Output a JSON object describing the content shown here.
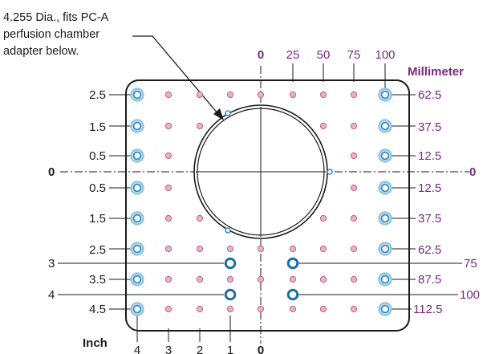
{
  "annotation": {
    "lines": [
      "4.255 Dia., fits PC-A",
      "perfusion chamber",
      "adapter below."
    ]
  },
  "units": {
    "inch": "Inch",
    "millimeter": "Millimeter"
  },
  "left_row_labels": [
    "2.5",
    "1.5",
    "0.5",
    "0",
    "0.5",
    "1.5",
    "2.5",
    "3",
    "3.5",
    "4",
    "4.5"
  ],
  "right_row_labels": [
    "62.5",
    "37.5",
    "12.5",
    "0",
    "12.5",
    "37.5",
    "62.5",
    "75",
    "87.5",
    "100",
    "112.5"
  ],
  "top_col_labels": [
    "0",
    "25",
    "50",
    "75",
    "100"
  ],
  "bottom_col_labels": [
    "4",
    "3",
    "2",
    "1",
    "0"
  ],
  "colors": {
    "frame": "#1a1a1a",
    "hole_blue": "#3a8fc4",
    "hole_blue_light": "#8ec6e2",
    "hole_pink": "#c25a8e",
    "hole_pink_light": "#e6b3cc",
    "purple_text": "#7a2a80"
  }
}
